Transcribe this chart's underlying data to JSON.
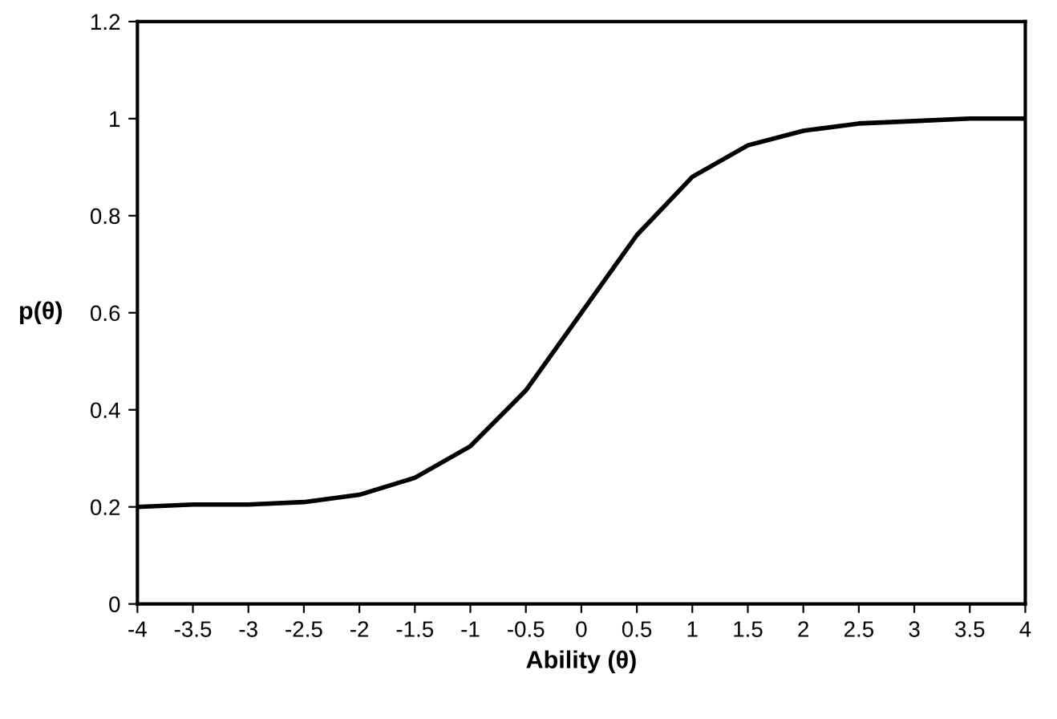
{
  "chart_data": {
    "type": "line",
    "xlabel": "Ability (θ)",
    "ylabel": "p(θ)",
    "x": [
      -4,
      -3.5,
      -3,
      -2.5,
      -2,
      -1.5,
      -1,
      -0.5,
      0,
      0.5,
      1,
      1.5,
      2,
      2.5,
      3,
      3.5,
      4
    ],
    "series": [
      {
        "color": "#000000",
        "values": [
          0.2,
          0.205,
          0.205,
          0.21,
          0.225,
          0.26,
          0.325,
          0.44,
          0.6,
          0.76,
          0.88,
          0.945,
          0.975,
          0.99,
          0.995,
          1.0,
          1.0
        ]
      }
    ],
    "xlim": [
      -4,
      4
    ],
    "xticks": [
      -4,
      -3.5,
      -3,
      -2.5,
      -2,
      -1.5,
      -1,
      -0.5,
      0,
      0.5,
      1,
      1.5,
      2,
      2.5,
      3,
      3.5,
      4
    ],
    "ylim": [
      0,
      1.2
    ],
    "yticks": [
      0,
      0.2,
      0.4,
      0.6,
      0.8,
      1,
      1.2
    ],
    "grid": false
  }
}
